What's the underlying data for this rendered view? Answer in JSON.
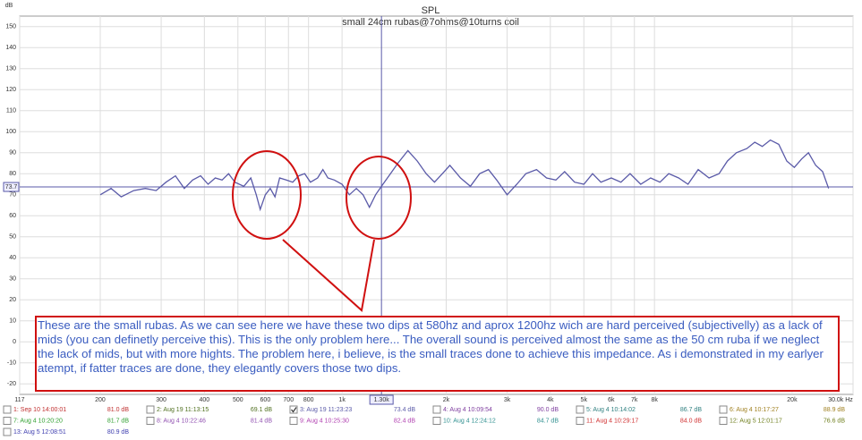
{
  "chart_data": {
    "type": "line",
    "title": "SPL",
    "subtitle": "small 24cm rubas@7ohms@10turns coil",
    "ylabel": "dB",
    "x": [
      200,
      215,
      230,
      250,
      270,
      290,
      310,
      330,
      350,
      370,
      390,
      410,
      430,
      450,
      470,
      490,
      520,
      545,
      565,
      580,
      600,
      620,
      640,
      660,
      690,
      720,
      750,
      780,
      810,
      850,
      880,
      910,
      950,
      1000,
      1050,
      1100,
      1150,
      1200,
      1250,
      1300,
      1380,
      1450,
      1550,
      1650,
      1750,
      1850,
      1950,
      2050,
      2200,
      2350,
      2500,
      2650,
      2800,
      3000,
      3200,
      3400,
      3650,
      3900,
      4150,
      4400,
      4700,
      5000,
      5300,
      5600,
      6000,
      6400,
      6800,
      7300,
      7800,
      8300,
      8800,
      9400,
      10000,
      10700,
      11500,
      12300,
      13000,
      13800,
      14800,
      15600,
      16400,
      17300,
      18300,
      19300,
      20300,
      21300,
      22300,
      23400,
      24500,
      25500
    ],
    "values": [
      70,
      73,
      69,
      72,
      73,
      72,
      76,
      79,
      73,
      77,
      79,
      75,
      78,
      77,
      80,
      76,
      74,
      78,
      70,
      63,
      70,
      73,
      69,
      78,
      77,
      76,
      79,
      80,
      76,
      78,
      82,
      78,
      77,
      75,
      70,
      73,
      70,
      64,
      70,
      74,
      80,
      85,
      91,
      86,
      80,
      76,
      80,
      84,
      78,
      74,
      80,
      82,
      77,
      70,
      75,
      80,
      82,
      78,
      77,
      81,
      76,
      75,
      80,
      76,
      78,
      76,
      80,
      75,
      78,
      76,
      80,
      78,
      75,
      82,
      78,
      80,
      86,
      90,
      92,
      95,
      93,
      96,
      94,
      86,
      83,
      87,
      90,
      84,
      81,
      73
    ],
    "color": "#5a5aa8",
    "log_x": true,
    "grid": true,
    "xlim": [
      117,
      30000
    ],
    "ylim": [
      -25,
      155
    ],
    "xticks": [
      117,
      200,
      300,
      400,
      500,
      600,
      700,
      800,
      {
        "value": 1000,
        "label": "1k"
      },
      {
        "value": 2000,
        "label": "2k"
      },
      {
        "value": 3000,
        "label": "3k"
      },
      {
        "value": 4000,
        "label": "4k"
      },
      {
        "value": 5000,
        "label": "5k"
      },
      {
        "value": 6000,
        "label": "6k"
      },
      {
        "value": 7000,
        "label": "7k"
      },
      {
        "value": 8000,
        "label": "8k"
      },
      {
        "value": 20000,
        "label": "20k"
      },
      {
        "value": 30000,
        "label": "30.0k Hz"
      }
    ],
    "yticks": [
      -20,
      -10,
      0,
      10,
      20,
      30,
      40,
      50,
      60,
      70,
      80,
      90,
      100,
      110,
      120,
      130,
      140,
      150
    ],
    "cursor": {
      "x": {
        "value": 1300,
        "label": "1.30k"
      },
      "y": 73.7
    },
    "annotation": "These are the small rubas. As we can see here we have these two dips at 580hz and aprox 1200hz wich are hard perceived (subjectivelly) as a lack of mids (you can definetly perceive this). This is the only problem here... The overall sound is perceived almost the same as the 50 cm ruba if we neglect the lack of mids, but with more hights. The problem here, i believe, is the small traces done to achieve this impedance. As i demonstrated in my earlyer atempt, if fatter traces are done, they elegantly covers those two dips.",
    "measurements": [
      {
        "name": "1: Sep 10 14:00:01",
        "level": "81.0 dB",
        "color": "#c03030",
        "checked": false
      },
      {
        "name": "2: Aug 19 11:13:15",
        "level": "69.1 dB",
        "color": "#507020",
        "checked": false
      },
      {
        "name": "3: Aug 19 11:23:23",
        "level": "73.4 dB",
        "color": "#5a5aa8",
        "checked": true
      },
      {
        "name": "4: Aug 4 10:09:54",
        "level": "90.0 dB",
        "color": "#8040a0",
        "checked": false
      },
      {
        "name": "5: Aug 4 10:14:02",
        "level": "86.7 dB",
        "color": "#308080",
        "checked": false
      },
      {
        "name": "6: Aug 4 10:17:27",
        "level": "88.9 dB",
        "color": "#a08020",
        "checked": false
      },
      {
        "name": "7: Aug 4 10:20:20",
        "level": "81.7 dB",
        "color": "#30a030",
        "checked": false
      },
      {
        "name": "8: Aug 4 10:22:46",
        "level": "81.4 dB",
        "color": "#9050b0",
        "checked": false
      },
      {
        "name": "9: Aug 4 10:25:30",
        "level": "82.4 dB",
        "color": "#b040b0",
        "checked": false
      },
      {
        "name": "10: Aug 4 12:24:12",
        "level": "84.7 dB",
        "color": "#309090",
        "checked": false
      },
      {
        "name": "11: Aug 4 10:29:17",
        "level": "84.0 dB",
        "color": "#d03030",
        "checked": false
      },
      {
        "name": "12: Aug 5 12:01:17",
        "level": "76.6 dB",
        "color": "#708020",
        "checked": false
      },
      {
        "name": "13: Aug 5 12:08:51",
        "level": "80.9 dB",
        "color": "#4040b0",
        "checked": false
      }
    ]
  }
}
